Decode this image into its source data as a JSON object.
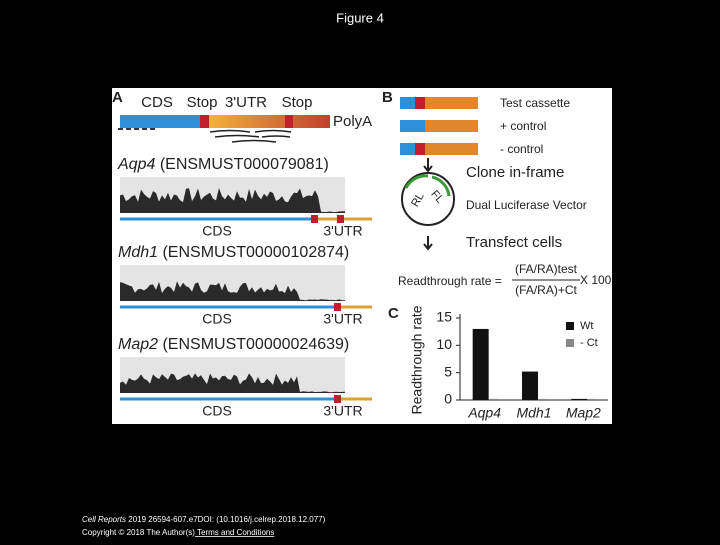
{
  "header": {
    "title": "Figure 4"
  },
  "panel_a": {
    "label": "A",
    "schematic": {
      "cds": "CDS",
      "stop1": "Stop",
      "utr": "3'UTR",
      "stop2": "Stop",
      "polya": "PolyA"
    },
    "tracks": [
      {
        "gene": "Aqp4",
        "id": " (ENSMUST000079081)",
        "cds": "CDS",
        "utr": "3'UTR"
      },
      {
        "gene": "Mdh1",
        "id": " (ENSMUST00000102874)",
        "cds": "CDS",
        "utr": "3'UTR"
      },
      {
        "gene": "Map2",
        "id": " (ENSMUST00000024639)",
        "cds": "CDS",
        "utr": "3'UTR"
      }
    ]
  },
  "panel_b": {
    "label": "B",
    "cassettes": [
      "Test cassette",
      "+ control",
      "- control"
    ],
    "clone": "Clone in-frame",
    "rl": "RL",
    "fl": "FL",
    "vector": "Dual Luciferase Vector",
    "transfect": "Transfect cells",
    "formula_lhs": "Readthrough rate =",
    "numerator": "(FA/RA)test",
    "denominator": "(FA/RA)+Ct",
    "factor": "X 100"
  },
  "chart_data": {
    "type": "bar",
    "panel_label": "C",
    "y_label": "Readthrough rate",
    "categories": [
      "Aqp4",
      "Mdh1",
      "Map2"
    ],
    "series": [
      {
        "name": "Wt",
        "color": "#111111",
        "values": [
          13,
          5.2,
          0.2
        ]
      },
      {
        "name": "- Ct",
        "color": "#888888",
        "values": [
          0.2,
          0.2,
          0.2
        ]
      }
    ],
    "ylim": [
      0,
      15
    ],
    "yticks": [
      0,
      5,
      10,
      15
    ]
  },
  "footer": {
    "journal": "Cell Reports",
    "citation": " 2019 26594-607.e7DOI: (10.1016/j.celrep.2018.12.077)",
    "copyright": "Copyright © 2018 The Author(s)",
    "terms": " Terms and Conditions"
  }
}
